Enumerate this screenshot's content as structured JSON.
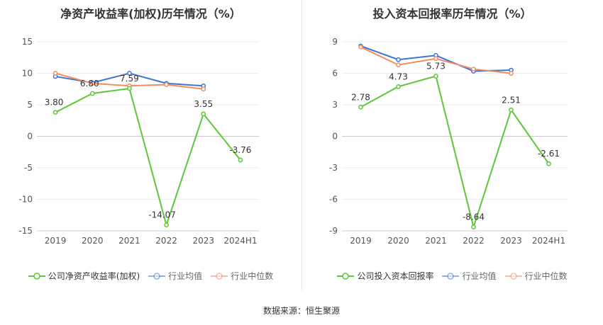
{
  "chart_data": [
    {
      "type": "line",
      "title": "净资产收益率(加权)历年情况（%）",
      "categories": [
        "2019",
        "2020",
        "2021",
        "2022",
        "2023",
        "2024H1"
      ],
      "ylim": [
        -15,
        15
      ],
      "yticks": [
        15,
        10,
        5,
        0,
        -5,
        -10,
        -15
      ],
      "grid": true,
      "legend_position": "bottom",
      "series": [
        {
          "name": "公司净资产收益率(加权)",
          "values": [
            3.8,
            6.8,
            7.59,
            -14.07,
            3.55,
            -3.76
          ],
          "labels": [
            "3.80",
            "6.80",
            "7.59",
            "-14.07",
            "3.55",
            "-3.76"
          ],
          "color": "#5ec639"
        },
        {
          "name": "行业均值",
          "values": [
            9.5,
            8.5,
            10.0,
            8.4,
            8.0,
            null
          ],
          "color": "#3f73d6"
        },
        {
          "name": "行业中位数",
          "values": [
            10.0,
            8.4,
            8.0,
            8.2,
            7.5,
            null
          ],
          "color": "#f28c62"
        }
      ]
    },
    {
      "type": "line",
      "title": "投入资本回报率历年情况（%）",
      "categories": [
        "2019",
        "2020",
        "2021",
        "2022",
        "2023",
        "2024H1"
      ],
      "ylim": [
        -9,
        9
      ],
      "yticks": [
        9,
        6,
        3,
        0,
        -3,
        -6,
        -9
      ],
      "grid": true,
      "legend_position": "bottom",
      "series": [
        {
          "name": "公司投入资本回报率",
          "values": [
            2.78,
            4.73,
            5.73,
            -8.64,
            2.51,
            -2.61
          ],
          "labels": [
            "2.78",
            "4.73",
            "5.73",
            "-8.64",
            "2.51",
            "-2.61"
          ],
          "color": "#5ec639"
        },
        {
          "name": "行业均值",
          "values": [
            8.6,
            7.3,
            7.7,
            6.2,
            6.3,
            null
          ],
          "color": "#3f73d6"
        },
        {
          "name": "行业中位数",
          "values": [
            8.5,
            6.8,
            7.4,
            6.4,
            6.0,
            null
          ],
          "color": "#f28c62"
        }
      ]
    }
  ],
  "footer": {
    "source": "数据来源：恒生聚源"
  }
}
